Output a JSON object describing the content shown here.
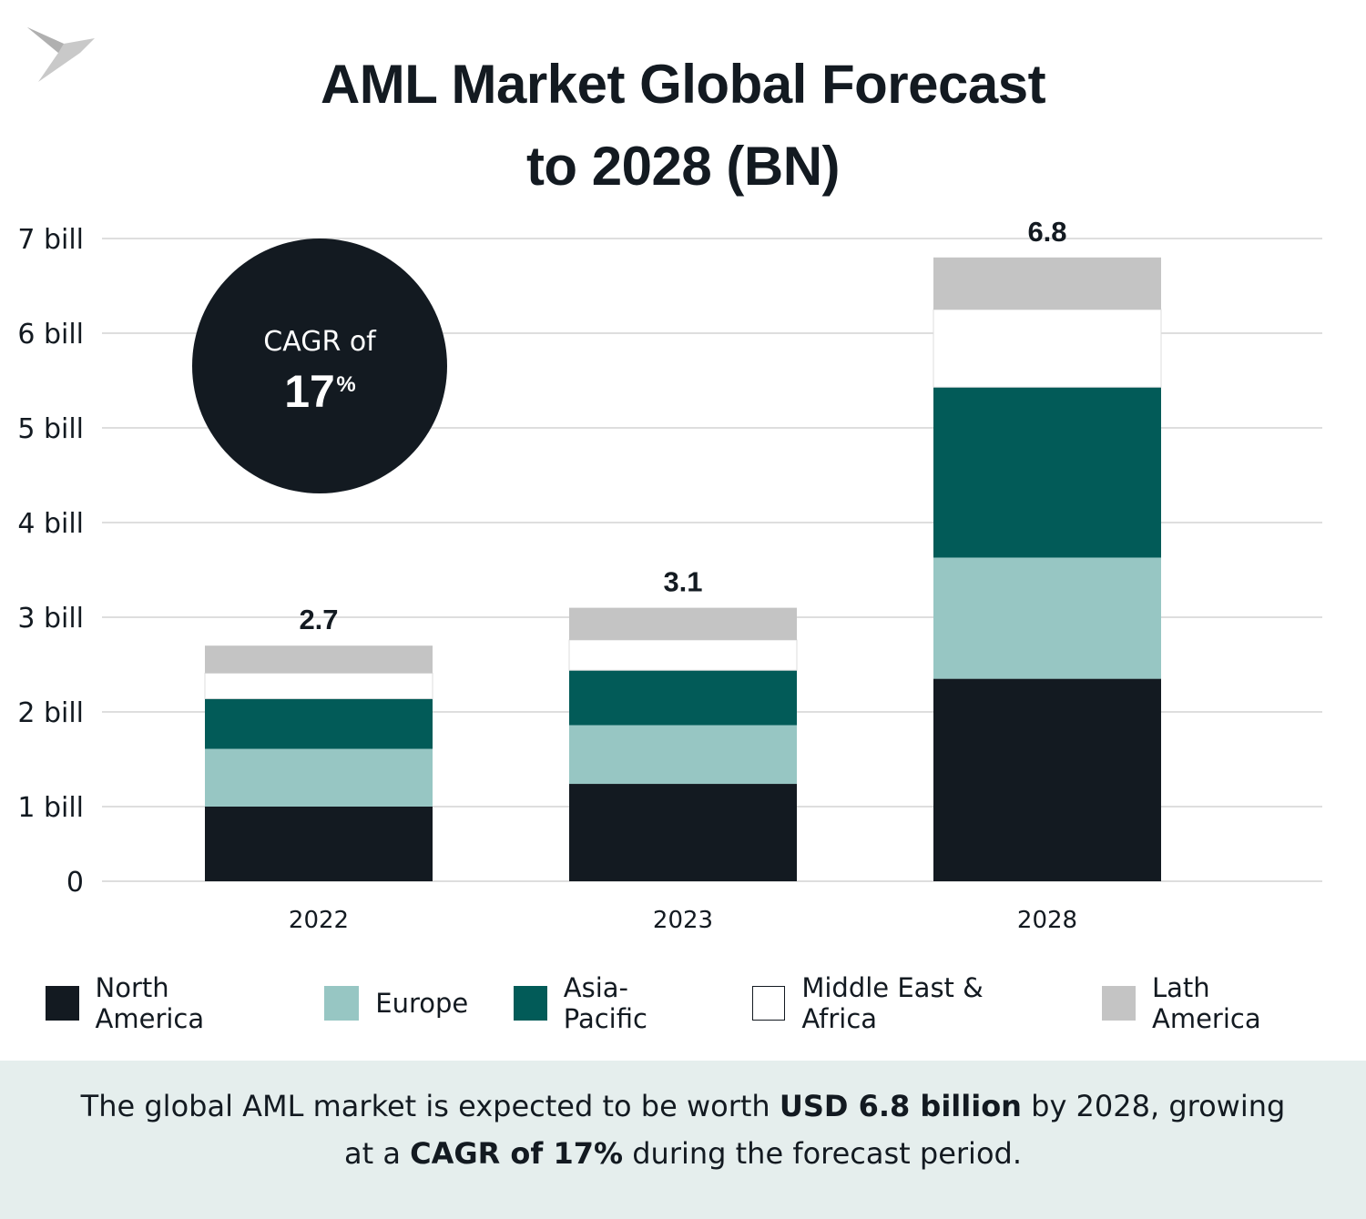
{
  "chart_data": {
    "type": "bar",
    "stacked": true,
    "title": "AML Market Global Forecast to 2028 (BN)",
    "title_lines": [
      "AML Market Global Forecast",
      "to 2028 (BN)"
    ],
    "categories": [
      "2022",
      "2023",
      "2028"
    ],
    "totals": [
      "2.7",
      "3.1",
      "6.8"
    ],
    "y_ticks": [
      "0",
      "1 bill",
      "2 bill",
      "3 bill",
      "4 bill",
      "5 bill",
      "6 bill",
      "7 bill"
    ],
    "ylim": [
      0,
      7
    ],
    "grid": true,
    "legend_position": "bottom",
    "series": [
      {
        "name": "North America",
        "color": "#131a21",
        "values": [
          1.0,
          1.24,
          2.35
        ]
      },
      {
        "name": "Europe",
        "color": "#97c6c3",
        "values": [
          0.61,
          0.62,
          1.28
        ]
      },
      {
        "name": "Asia-Pacific",
        "color": "#025b58",
        "values": [
          0.53,
          0.58,
          1.8
        ]
      },
      {
        "name": "Middle East & Africa",
        "color": "#ffffff",
        "values": [
          0.27,
          0.32,
          0.82
        ]
      },
      {
        "name": "Lath America",
        "color": "#c4c4c4",
        "values": [
          0.29,
          0.34,
          0.55
        ]
      }
    ]
  },
  "badge": {
    "line1": "CAGR of",
    "value": "17",
    "unit": "%"
  },
  "footer": {
    "p1": "The  global AML market is expected to be worth ",
    "b1": "USD 6.8 billion",
    "p2": " by 2028, growing",
    "p3": "at a ",
    "b2": "CAGR of 17%",
    "p4": " during the forecast period."
  },
  "logo_icon": "bird-icon"
}
